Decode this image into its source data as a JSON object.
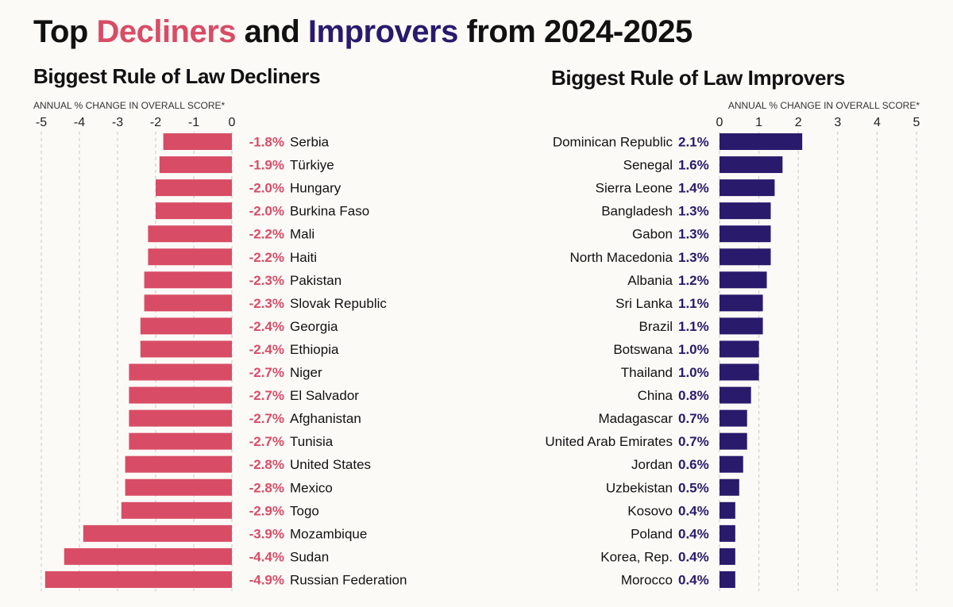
{
  "title": {
    "part1": "Top ",
    "part2": "Decliners",
    "part3": " and ",
    "part4": "Improvers",
    "part5": " from 2024-2025"
  },
  "colors": {
    "decliners": "#d94c66",
    "improvers": "#2a1a6c",
    "grid": "#c8c8c8",
    "text": "#111111"
  },
  "chart_data": [
    {
      "type": "bar",
      "orientation": "horizontal",
      "title": "Biggest Rule of Law Decliners",
      "xlabel": "ANNUAL % CHANGE IN OVERALL SCORE*",
      "xlim": [
        -5,
        0
      ],
      "xticks": [
        -5,
        -4,
        -3,
        -2,
        -1,
        0
      ],
      "xtick_labels": [
        "-5",
        "-4",
        "-3",
        "-2",
        "-1",
        "0"
      ],
      "categories": [
        "Serbia",
        "Türkiye",
        "Hungary",
        "Burkina Faso",
        "Mali",
        "Haiti",
        "Pakistan",
        "Slovak Republic",
        "Georgia",
        "Ethiopia",
        "Niger",
        "El Salvador",
        "Afghanistan",
        "Tunisia",
        "United States",
        "Mexico",
        "Togo",
        "Mozambique",
        "Sudan",
        "Russian Federation"
      ],
      "values": [
        -1.8,
        -1.9,
        -2.0,
        -2.0,
        -2.2,
        -2.2,
        -2.3,
        -2.3,
        -2.4,
        -2.4,
        -2.7,
        -2.7,
        -2.7,
        -2.7,
        -2.8,
        -2.8,
        -2.9,
        -3.9,
        -4.4,
        -4.9
      ],
      "data_labels": [
        "-1.8%",
        "-1.9%",
        "-2.0%",
        "-2.0%",
        "-2.2%",
        "-2.2%",
        "-2.3%",
        "-2.3%",
        "-2.4%",
        "-2.4%",
        "-2.7%",
        "-2.7%",
        "-2.7%",
        "-2.7%",
        "-2.8%",
        "-2.8%",
        "-2.9%",
        "-3.9%",
        "-4.4%",
        "-4.9%"
      ],
      "grid": true
    },
    {
      "type": "bar",
      "orientation": "horizontal",
      "title": "Biggest Rule of Law Improvers",
      "xlabel": "ANNUAL % CHANGE IN OVERALL SCORE*",
      "xlim": [
        0,
        5
      ],
      "xticks": [
        0,
        1,
        2,
        3,
        4,
        5
      ],
      "xtick_labels": [
        "0",
        "1",
        "2",
        "3",
        "4",
        "5"
      ],
      "categories": [
        "Dominican Republic",
        "Senegal",
        "Sierra Leone",
        "Bangladesh",
        "Gabon",
        "North Macedonia",
        "Albania",
        "Sri Lanka",
        "Brazil",
        "Botswana",
        "Thailand",
        "China",
        "Madagascar",
        "United Arab Emirates",
        "Jordan",
        "Uzbekistan",
        "Kosovo",
        "Poland",
        "Korea, Rep.",
        "Morocco"
      ],
      "values": [
        2.1,
        1.6,
        1.4,
        1.3,
        1.3,
        1.3,
        1.2,
        1.1,
        1.1,
        1.0,
        1.0,
        0.8,
        0.7,
        0.7,
        0.6,
        0.5,
        0.4,
        0.4,
        0.4,
        0.4
      ],
      "data_labels": [
        "2.1%",
        "1.6%",
        "1.4%",
        "1.3%",
        "1.3%",
        "1.3%",
        "1.2%",
        "1.1%",
        "1.1%",
        "1.0%",
        "1.0%",
        "0.8%",
        "0.7%",
        "0.7%",
        "0.6%",
        "0.5%",
        "0.4%",
        "0.4%",
        "0.4%",
        "0.4%"
      ],
      "grid": true
    }
  ]
}
